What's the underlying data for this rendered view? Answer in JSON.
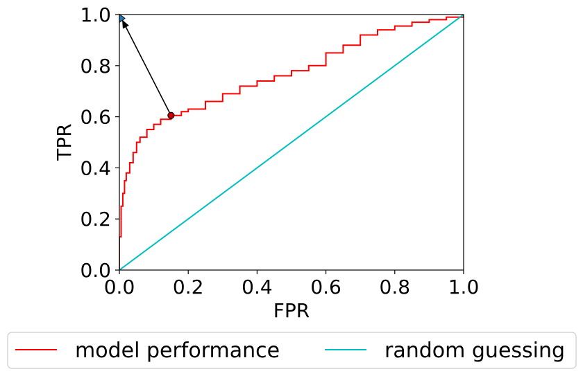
{
  "chart_data": {
    "type": "line",
    "xlabel": "FPR",
    "ylabel": "TPR",
    "xlim": [
      0.0,
      1.0
    ],
    "ylim": [
      0.0,
      1.0
    ],
    "x_ticks": [
      "0.0",
      "0.2",
      "0.4",
      "0.6",
      "0.8",
      "1.0"
    ],
    "y_ticks": [
      "0.0",
      "0.2",
      "0.4",
      "0.6",
      "0.8",
      "1.0"
    ],
    "grid": false,
    "legend_position": "bottom",
    "series": [
      {
        "name": "model performance",
        "color": "#ff0000",
        "x": [
          0.0,
          0.0,
          0.005,
          0.01,
          0.015,
          0.02,
          0.03,
          0.04,
          0.05,
          0.06,
          0.08,
          0.1,
          0.12,
          0.15,
          0.18,
          0.2,
          0.25,
          0.3,
          0.35,
          0.4,
          0.45,
          0.5,
          0.55,
          0.6,
          0.65,
          0.7,
          0.75,
          0.8,
          0.85,
          0.9,
          0.95,
          1.0
        ],
        "y": [
          0.0,
          0.13,
          0.25,
          0.3,
          0.35,
          0.38,
          0.42,
          0.46,
          0.5,
          0.52,
          0.55,
          0.57,
          0.59,
          0.605,
          0.62,
          0.63,
          0.66,
          0.69,
          0.72,
          0.74,
          0.76,
          0.78,
          0.8,
          0.85,
          0.88,
          0.92,
          0.94,
          0.955,
          0.97,
          0.98,
          0.99,
          1.0
        ]
      },
      {
        "name": "random guessing",
        "color": "#00bfbf",
        "x": [
          0.0,
          1.0
        ],
        "y": [
          0.0,
          1.0
        ]
      }
    ],
    "annotations": {
      "operating_point": {
        "x": 0.15,
        "y": 0.605,
        "color": "#cc0000"
      },
      "ideal_point": {
        "x": 0.0,
        "y": 0.985,
        "color": "#1f77b4"
      }
    }
  }
}
